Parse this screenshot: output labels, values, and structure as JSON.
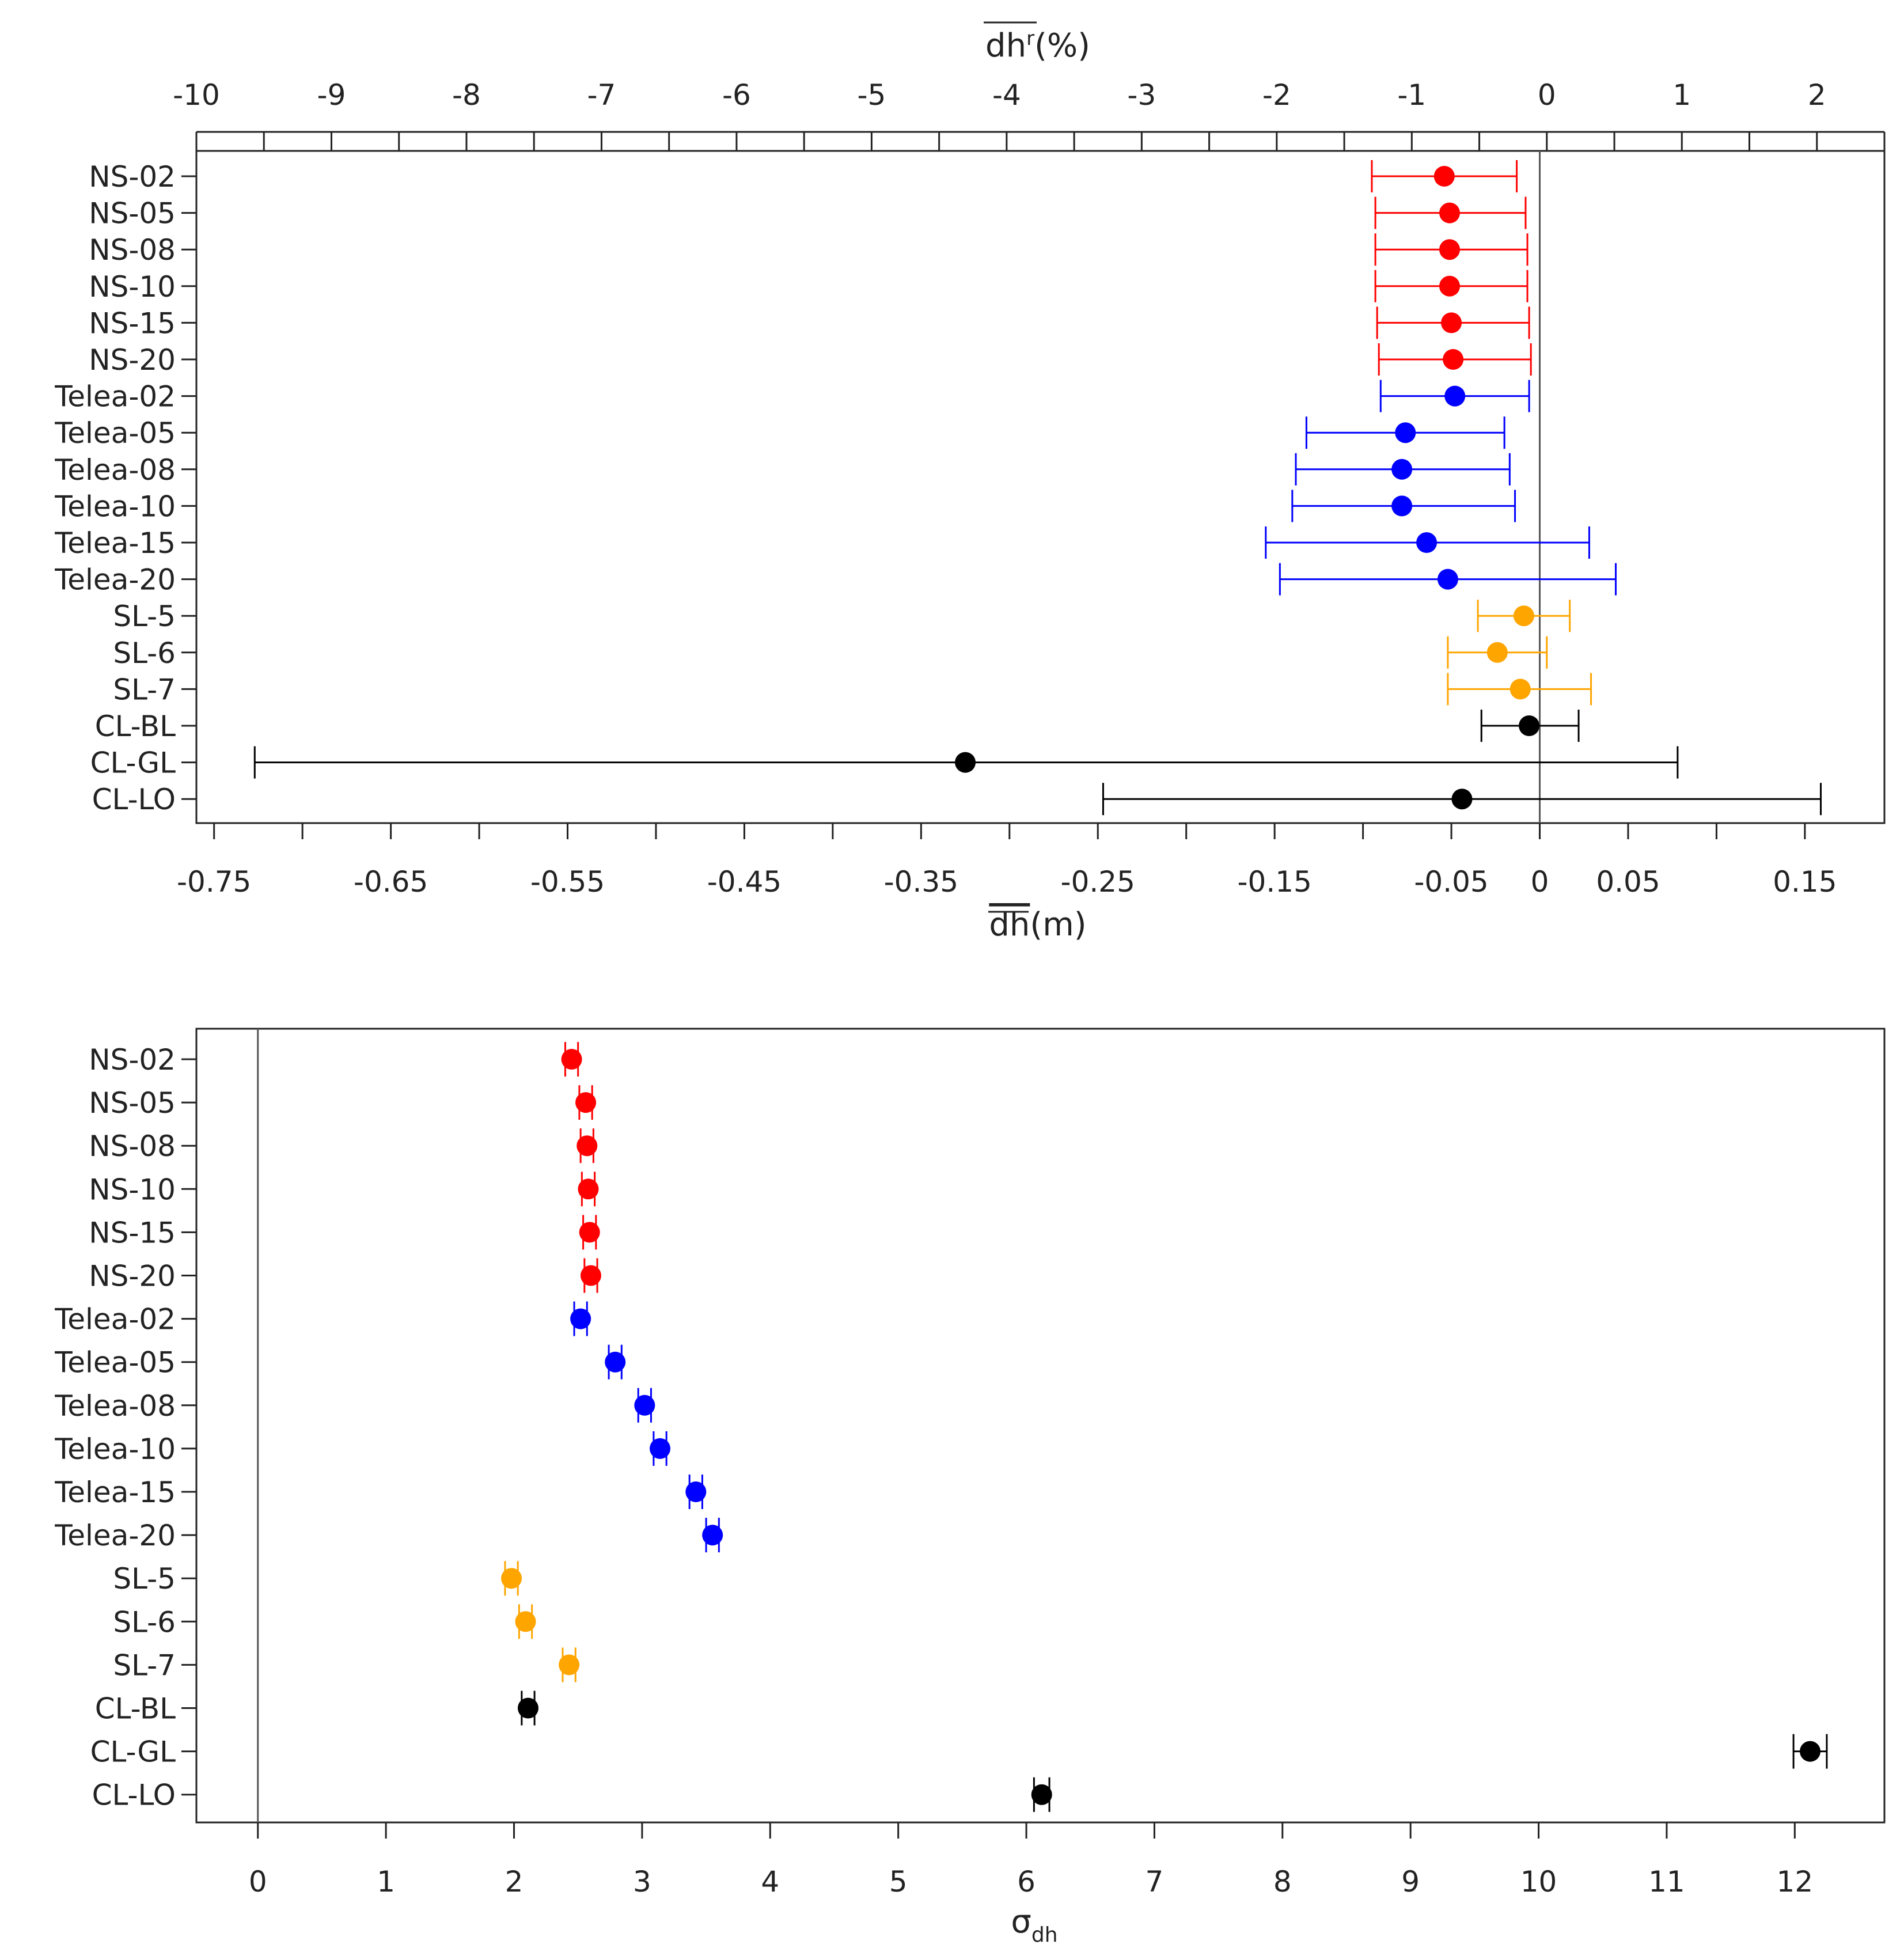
{
  "colors": {
    "NS": "#ff0000",
    "Telea": "#0000ff",
    "SL": "#ffa500",
    "CL": "#000000",
    "axis": "#222222",
    "zero_line": "#555555"
  },
  "chart_data": [
    {
      "type": "errorbar",
      "title": "",
      "top_axis": {
        "label_main": "dh",
        "label_sup": "r",
        "label_suffix": "(%)",
        "range": [
          -10.0,
          2.5
        ],
        "ticks": [
          -10,
          -9,
          -8,
          -7,
          -6,
          -5,
          -4,
          -3,
          -2,
          -1,
          0,
          1,
          2
        ],
        "tick_labels": [
          "-10",
          "-9",
          "-8",
          "-7",
          "-6",
          "-5",
          "-4",
          "-3",
          "-2",
          "-1",
          "0",
          "1",
          "2"
        ]
      },
      "bottom_axis": {
        "label_main": "dh",
        "label_suffix": "(m)",
        "range": [
          -0.76,
          0.195
        ],
        "ticks": [
          -0.75,
          -0.65,
          -0.55,
          -0.45,
          -0.35,
          -0.25,
          -0.15,
          -0.05,
          0,
          0.05,
          0.15
        ],
        "tick_labels": [
          "-0.75",
          "-0.65",
          "-0.55",
          "-0.45",
          "-0.35",
          "-0.25",
          "-0.15",
          "-0.05",
          "0",
          "0.05",
          "0.15"
        ]
      },
      "categories": [
        "NS-02",
        "NS-05",
        "NS-08",
        "NS-10",
        "NS-15",
        "NS-20",
        "Telea-02",
        "Telea-05",
        "Telea-08",
        "Telea-10",
        "Telea-15",
        "Telea-20",
        "SL-5",
        "SL-6",
        "SL-7",
        "CL-BL",
        "CL-GL",
        "CL-LO"
      ],
      "groups": [
        "NS",
        "NS",
        "NS",
        "NS",
        "NS",
        "NS",
        "Telea",
        "Telea",
        "Telea",
        "Telea",
        "Telea",
        "Telea",
        "SL",
        "SL",
        "SL",
        "CL",
        "CL",
        "CL"
      ],
      "values": [
        -0.054,
        -0.051,
        -0.051,
        -0.051,
        -0.05,
        -0.049,
        -0.048,
        -0.076,
        -0.078,
        -0.078,
        -0.064,
        -0.052,
        -0.009,
        -0.024,
        -0.011,
        -0.006,
        -0.325,
        -0.044
      ],
      "lower": [
        -0.095,
        -0.093,
        -0.093,
        -0.093,
        -0.092,
        -0.091,
        -0.09,
        -0.132,
        -0.138,
        -0.14,
        -0.155,
        -0.147,
        -0.035,
        -0.052,
        -0.052,
        -0.033,
        -0.727,
        -0.247
      ],
      "upper": [
        -0.013,
        -0.008,
        -0.007,
        -0.007,
        -0.006,
        -0.005,
        -0.006,
        -0.02,
        -0.017,
        -0.014,
        0.028,
        0.043,
        0.017,
        0.004,
        0.029,
        0.022,
        0.078,
        0.159
      ],
      "zero_line": 0
    },
    {
      "type": "errorbar",
      "title": "",
      "x_axis": {
        "label_main": "σ",
        "label_sub": "dh",
        "range": [
          -0.48,
          12.7
        ],
        "ticks": [
          0,
          1,
          2,
          3,
          4,
          5,
          6,
          7,
          8,
          9,
          10,
          11,
          12
        ],
        "tick_labels": [
          "0",
          "1",
          "2",
          "3",
          "4",
          "5",
          "6",
          "7",
          "8",
          "9",
          "10",
          "11",
          "12"
        ]
      },
      "categories": [
        "NS-02",
        "NS-05",
        "NS-08",
        "NS-10",
        "NS-15",
        "NS-20",
        "Telea-02",
        "Telea-05",
        "Telea-08",
        "Telea-10",
        "Telea-15",
        "Telea-20",
        "SL-5",
        "SL-6",
        "SL-7",
        "CL-BL",
        "CL-GL",
        "CL-LO"
      ],
      "groups": [
        "NS",
        "NS",
        "NS",
        "NS",
        "NS",
        "NS",
        "Telea",
        "Telea",
        "Telea",
        "Telea",
        "Telea",
        "Telea",
        "SL",
        "SL",
        "SL",
        "CL",
        "CL",
        "CL"
      ],
      "values": [
        2.45,
        2.56,
        2.57,
        2.58,
        2.59,
        2.6,
        2.52,
        2.79,
        3.02,
        3.14,
        3.42,
        3.55,
        1.98,
        2.09,
        2.43,
        2.11,
        12.12,
        6.12
      ],
      "lower": [
        2.4,
        2.51,
        2.52,
        2.53,
        2.54,
        2.55,
        2.47,
        2.74,
        2.97,
        3.09,
        3.37,
        3.5,
        1.93,
        2.04,
        2.38,
        2.06,
        11.99,
        6.06
      ],
      "upper": [
        2.5,
        2.61,
        2.62,
        2.63,
        2.64,
        2.65,
        2.57,
        2.84,
        3.07,
        3.19,
        3.47,
        3.6,
        2.03,
        2.14,
        2.48,
        2.16,
        12.25,
        6.18
      ],
      "zero_line": 0
    }
  ]
}
